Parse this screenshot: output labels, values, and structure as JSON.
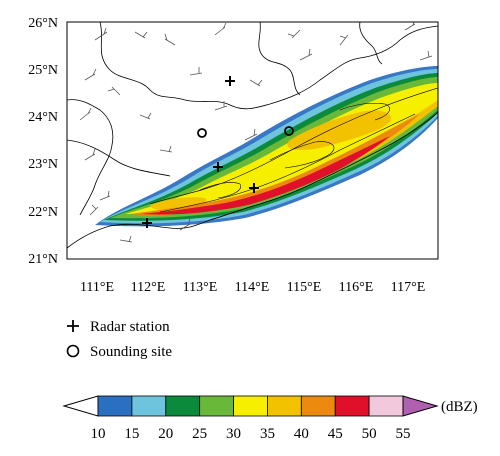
{
  "map": {
    "lat_ticks": [
      "26°N",
      "25°N",
      "24°N",
      "23°N",
      "22°N",
      "21°N"
    ],
    "lon_ticks": [
      "111°E",
      "112°E",
      "113°E",
      "114°E",
      "115°E",
      "116°E",
      "117°E"
    ],
    "lon_range": [
      110.5,
      117.6
    ],
    "lat_range": [
      21.0,
      26.0
    ]
  },
  "legend": {
    "radar_station": "Radar station",
    "sounding_site": "Sounding site"
  },
  "colorbar": {
    "unit": "(dBZ)",
    "ticks": [
      "10",
      "15",
      "20",
      "25",
      "30",
      "35",
      "40",
      "45",
      "50",
      "55"
    ],
    "colors": [
      "#ffffff",
      "#2b6fc0",
      "#6ec4dc",
      "#0a8a3a",
      "#6ab83a",
      "#f6f000",
      "#f2c200",
      "#ec8a10",
      "#e0102a",
      "#f2c8dc",
      "#b060b0"
    ]
  },
  "markers": {
    "radar_stations": [
      [
        113.6,
        24.8
      ],
      [
        113.3,
        23.0
      ],
      [
        112.0,
        21.8
      ],
      [
        114.1,
        22.6
      ]
    ],
    "sounding_sites": [
      [
        113.1,
        23.7
      ],
      [
        114.7,
        23.7
      ]
    ]
  }
}
